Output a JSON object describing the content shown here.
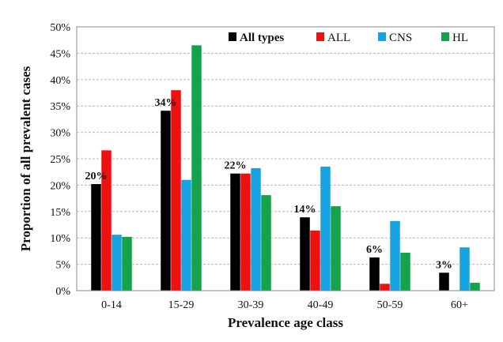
{
  "chart_data": {
    "type": "bar",
    "xlabel": "Prevalence age class",
    "ylabel": "Proportion of all prevalent cases",
    "ylim": [
      0,
      50
    ],
    "yticks": [
      0,
      5,
      10,
      15,
      20,
      25,
      30,
      35,
      40,
      45,
      50
    ],
    "ytick_suffix": "%",
    "grid": true,
    "legend_position": "top-right",
    "categories": [
      "0-14",
      "15-29",
      "30-39",
      "40-49",
      "50-59",
      "60+"
    ],
    "series": [
      {
        "name": "All types",
        "color": "#000000",
        "values": [
          20.2,
          34.1,
          22.2,
          13.9,
          6.3,
          3.4
        ]
      },
      {
        "name": "ALL",
        "color": "#ee1111",
        "values": [
          26.6,
          38.0,
          22.2,
          11.4,
          1.3,
          0
        ]
      },
      {
        "name": "CNS",
        "color": "#15a3e3",
        "values": [
          10.6,
          21.0,
          23.2,
          23.5,
          13.2,
          8.2
        ]
      },
      {
        "name": "HL",
        "color": "#14a34a",
        "values": [
          10.2,
          46.5,
          18.1,
          16.0,
          7.2,
          1.5
        ]
      }
    ],
    "data_labels": [
      "20%",
      "34%",
      "22%",
      "14%",
      "6%",
      "3%"
    ]
  }
}
